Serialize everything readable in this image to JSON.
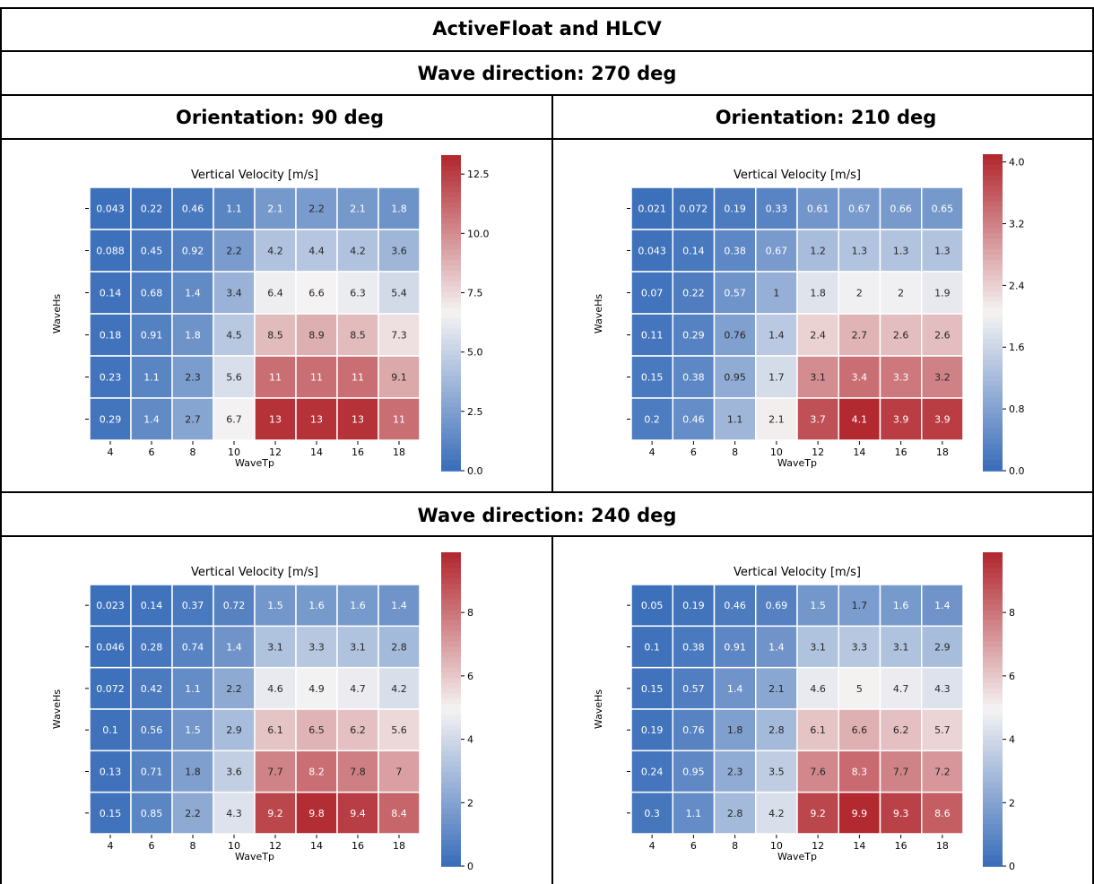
{
  "header": {
    "title": "ActiveFloat and HLCV",
    "section1": "Wave direction: 270 deg",
    "section2": "Wave direction: 240 deg",
    "orient_left": "Orientation: 90 deg",
    "orient_right": "Orientation: 210 deg"
  },
  "colors": {
    "low": "#3b6fba",
    "mid": "#f5f3f3",
    "high": "#b22930",
    "border": "#000000"
  },
  "chart_data": [
    {
      "type": "heatmap",
      "title": "Vertical Velocity [m/s]",
      "xlabel": "WaveTp",
      "ylabel": "WaveHs",
      "x": [
        "4",
        "6",
        "8",
        "10",
        "12",
        "14",
        "16",
        "18"
      ],
      "y": [
        "",
        "",
        "",
        "",
        "",
        ""
      ],
      "values": [
        [
          "0.043",
          "0.22",
          "0.46",
          "1.1",
          "2.1",
          "2.2",
          "2.1",
          "1.8"
        ],
        [
          "0.088",
          "0.45",
          "0.92",
          "2.2",
          "4.2",
          "4.4",
          "4.2",
          "3.6"
        ],
        [
          "0.14",
          "0.68",
          "1.4",
          "3.4",
          "6.4",
          "6.6",
          "6.3",
          "5.4"
        ],
        [
          "0.18",
          "0.91",
          "1.8",
          "4.5",
          "8.5",
          "8.9",
          "8.5",
          "7.3"
        ],
        [
          "0.23",
          "1.1",
          "2.3",
          "5.6",
          "11",
          "11",
          "11",
          "9.1"
        ],
        [
          "0.29",
          "1.4",
          "2.7",
          "6.7",
          "13",
          "13",
          "13",
          "11"
        ]
      ],
      "colorbar": {
        "vmin": 0,
        "vmax": 13.3,
        "ticks": [
          "0.0",
          "2.5",
          "5.0",
          "7.5",
          "10.0",
          "12.5"
        ],
        "tick_values": [
          0,
          2.5,
          5,
          7.5,
          10,
          12.5
        ]
      }
    },
    {
      "type": "heatmap",
      "title": "Vertical Velocity [m/s]",
      "xlabel": "WaveTp",
      "ylabel": "WaveHs",
      "x": [
        "4",
        "6",
        "8",
        "10",
        "12",
        "14",
        "16",
        "18"
      ],
      "y": [
        "",
        "",
        "",
        "",
        "",
        ""
      ],
      "values": [
        [
          "0.021",
          "0.072",
          "0.19",
          "0.33",
          "0.61",
          "0.67",
          "0.66",
          "0.65"
        ],
        [
          "0.043",
          "0.14",
          "0.38",
          "0.67",
          "1.2",
          "1.3",
          "1.3",
          "1.3"
        ],
        [
          "0.07",
          "0.22",
          "0.57",
          "1",
          "1.8",
          "2",
          "2",
          "1.9"
        ],
        [
          "0.11",
          "0.29",
          "0.76",
          "1.4",
          "2.4",
          "2.7",
          "2.6",
          "2.6"
        ],
        [
          "0.15",
          "0.38",
          "0.95",
          "1.7",
          "3.1",
          "3.4",
          "3.3",
          "3.2"
        ],
        [
          "0.2",
          "0.46",
          "1.1",
          "2.1",
          "3.7",
          "4.1",
          "3.9",
          "3.9"
        ]
      ],
      "colorbar": {
        "vmin": 0,
        "vmax": 4.1,
        "ticks": [
          "0.0",
          "0.8",
          "1.6",
          "2.4",
          "3.2",
          "4.0"
        ],
        "tick_values": [
          0,
          0.8,
          1.6,
          2.4,
          3.2,
          4.0
        ]
      }
    },
    {
      "type": "heatmap",
      "title": "Vertical Velocity [m/s]",
      "xlabel": "WaveTp",
      "ylabel": "WaveHs",
      "x": [
        "4",
        "6",
        "8",
        "10",
        "12",
        "14",
        "16",
        "18"
      ],
      "y": [
        "",
        "",
        "",
        "",
        "",
        ""
      ],
      "values": [
        [
          "0.023",
          "0.14",
          "0.37",
          "0.72",
          "1.5",
          "1.6",
          "1.6",
          "1.4"
        ],
        [
          "0.046",
          "0.28",
          "0.74",
          "1.4",
          "3.1",
          "3.3",
          "3.1",
          "2.8"
        ],
        [
          "0.072",
          "0.42",
          "1.1",
          "2.2",
          "4.6",
          "4.9",
          "4.7",
          "4.2"
        ],
        [
          "0.1",
          "0.56",
          "1.5",
          "2.9",
          "6.1",
          "6.5",
          "6.2",
          "5.6"
        ],
        [
          "0.13",
          "0.71",
          "1.8",
          "3.6",
          "7.7",
          "8.2",
          "7.8",
          "7"
        ],
        [
          "0.15",
          "0.85",
          "2.2",
          "4.3",
          "9.2",
          "9.8",
          "9.4",
          "8.4"
        ]
      ],
      "colorbar": {
        "vmin": 0,
        "vmax": 9.9,
        "ticks": [
          "0",
          "2",
          "4",
          "6",
          "8"
        ],
        "tick_values": [
          0,
          2,
          4,
          6,
          8
        ]
      }
    },
    {
      "type": "heatmap",
      "title": "Vertical Velocity [m/s]",
      "xlabel": "WaveTp",
      "ylabel": "WaveHs",
      "x": [
        "4",
        "6",
        "8",
        "10",
        "12",
        "14",
        "16",
        "18"
      ],
      "y": [
        "",
        "",
        "",
        "",
        "",
        ""
      ],
      "values": [
        [
          "0.05",
          "0.19",
          "0.46",
          "0.69",
          "1.5",
          "1.7",
          "1.6",
          "1.4"
        ],
        [
          "0.1",
          "0.38",
          "0.91",
          "1.4",
          "3.1",
          "3.3",
          "3.1",
          "2.9"
        ],
        [
          "0.15",
          "0.57",
          "1.4",
          "2.1",
          "4.6",
          "5",
          "4.7",
          "4.3"
        ],
        [
          "0.19",
          "0.76",
          "1.8",
          "2.8",
          "6.1",
          "6.6",
          "6.2",
          "5.7"
        ],
        [
          "0.24",
          "0.95",
          "2.3",
          "3.5",
          "7.6",
          "8.3",
          "7.7",
          "7.2"
        ],
        [
          "0.3",
          "1.1",
          "2.8",
          "4.2",
          "9.2",
          "9.9",
          "9.3",
          "8.6"
        ]
      ],
      "colorbar": {
        "vmin": 0,
        "vmax": 9.9,
        "ticks": [
          "0",
          "2",
          "4",
          "6",
          "8"
        ],
        "tick_values": [
          0,
          2,
          4,
          6,
          8
        ]
      }
    }
  ]
}
